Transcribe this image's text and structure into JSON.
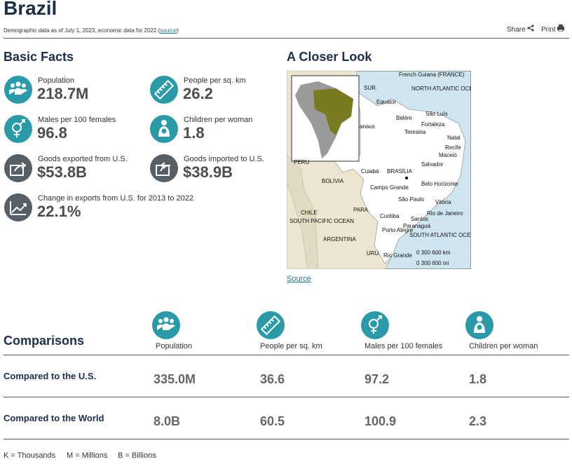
{
  "header": {
    "title": "Brazil",
    "subtitle_prefix": "Demographic data as of July 1, 2023, economic data for 2022 (",
    "source_link": "source",
    "subtitle_suffix": ")",
    "share": "Share",
    "print": "Print"
  },
  "basic_facts": {
    "title": "Basic Facts",
    "items": [
      {
        "label": "Population",
        "value": "218.7M"
      },
      {
        "label": "People per sq. km",
        "value": "26.2"
      },
      {
        "label": "Males per 100 females",
        "value": "96.8"
      },
      {
        "label": "Children per woman",
        "value": "1.8"
      },
      {
        "label": "Goods exported from U.S.",
        "value": "$53.8B"
      },
      {
        "label": "Goods imported to U.S.",
        "value": "$38.9B"
      },
      {
        "label": "Change in exports from U.S. for 2013 to 2022",
        "value": "22.1%"
      }
    ]
  },
  "closer_look": {
    "title": "A Closer Look",
    "source": "Source",
    "map_labels": [
      "French Guiana (FRANCE)",
      "SUR.",
      "NORTH ATLANTIC OCEAN",
      "Equator",
      "São Luís",
      "Belém",
      "Fortaleza",
      "Teresina",
      "anaus",
      "Natal",
      "Recife",
      "Maceió",
      "Salvador",
      "PERU",
      "Cuiabá",
      "BRASÍLIA",
      "BOLIVIA",
      "Campo Grande",
      "Belo Horizonte",
      "Vitória",
      "São Paulo",
      "Rio de Janeiro",
      "Curitiba",
      "Santos",
      "Paranaguá",
      "CHILE",
      "PARA.",
      "SOUTH PACIFIC OCEAN",
      "SOUTH ATLANTIC OCEAN",
      "ARGENTINA",
      "Porto Alegre",
      "URU.",
      "Rio Grande",
      "0   300   600 km",
      "0     300     600 mi"
    ]
  },
  "comparisons": {
    "title": "Comparisons",
    "columns": [
      "Population",
      "People per sq. km",
      "Males per 100 females",
      "Children per woman"
    ],
    "rows": [
      {
        "label": "Compared to the U.S.",
        "values": [
          "335.0M",
          "36.6",
          "97.2",
          "1.8"
        ]
      },
      {
        "label": "Compared to the World",
        "values": [
          "8.0B",
          "60.5",
          "100.9",
          "2.3"
        ]
      }
    ]
  },
  "legend": [
    "K = Thousands",
    "M = Millions",
    "B = Billions"
  ]
}
